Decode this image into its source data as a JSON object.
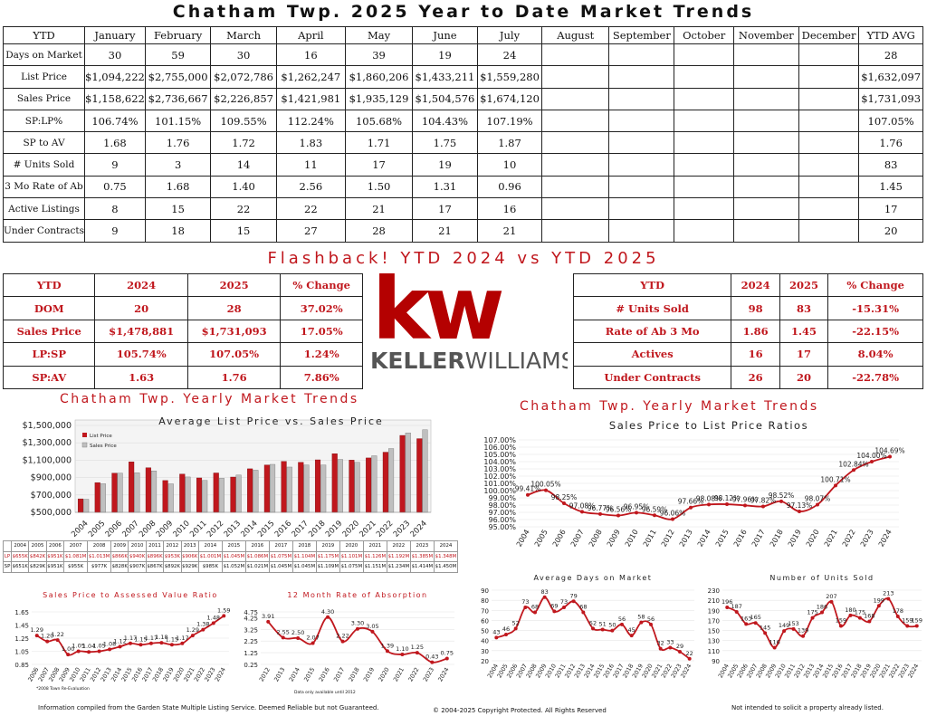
{
  "title": "Chatham Twp. 2025 Year to Date Market Trends",
  "main_table": {
    "headers": [
      "YTD",
      "January",
      "February",
      "March",
      "April",
      "May",
      "June",
      "July",
      "August",
      "September",
      "October",
      "November",
      "December",
      "YTD AVG"
    ],
    "rows": [
      {
        "label": "Days on Market",
        "cells": [
          "30",
          "59",
          "30",
          "16",
          "39",
          "19",
          "24",
          "",
          "",
          "",
          "",
          "",
          "28"
        ]
      },
      {
        "label": "List Price",
        "cells": [
          "$1,094,222",
          "$2,755,000",
          "$2,072,786",
          "$1,262,247",
          "$1,860,206",
          "$1,433,211",
          "$1,559,280",
          "",
          "",
          "",
          "",
          "",
          "$1,632,097"
        ]
      },
      {
        "label": "Sales Price",
        "cells": [
          "$1,158,622",
          "$2,736,667",
          "$2,226,857",
          "$1,421,981",
          "$1,935,129",
          "$1,504,576",
          "$1,674,120",
          "",
          "",
          "",
          "",
          "",
          "$1,731,093"
        ]
      },
      {
        "label": "SP:LP%",
        "cells": [
          "106.74%",
          "101.15%",
          "109.55%",
          "112.24%",
          "105.68%",
          "104.43%",
          "107.19%",
          "",
          "",
          "",
          "",
          "",
          "107.05%"
        ]
      },
      {
        "label": "SP to AV",
        "cells": [
          "1.68",
          "1.76",
          "1.72",
          "1.83",
          "1.71",
          "1.75",
          "1.87",
          "",
          "",
          "",
          "",
          "",
          "1.76"
        ]
      },
      {
        "label": "# Units Sold",
        "cells": [
          "9",
          "3",
          "14",
          "11",
          "17",
          "19",
          "10",
          "",
          "",
          "",
          "",
          "",
          "83"
        ]
      },
      {
        "label": "3 Mo Rate of Ab",
        "cells": [
          "0.75",
          "1.68",
          "1.40",
          "2.56",
          "1.50",
          "1.31",
          "0.96",
          "",
          "",
          "",
          "",
          "",
          "1.45"
        ]
      },
      {
        "label": "Active Listings",
        "cells": [
          "8",
          "15",
          "22",
          "22",
          "21",
          "17",
          "16",
          "",
          "",
          "",
          "",
          "",
          "17"
        ]
      },
      {
        "label": "Under Contracts",
        "cells": [
          "9",
          "18",
          "15",
          "27",
          "28",
          "21",
          "21",
          "",
          "",
          "",
          "",
          "",
          "20"
        ]
      }
    ]
  },
  "flashback_title": "Flashback!  YTD 2024 vs YTD 2025",
  "compare_left": {
    "headers": [
      "YTD",
      "2024",
      "2025",
      "% Change"
    ],
    "rows": [
      [
        "DOM",
        "20",
        "28",
        "37.02%"
      ],
      [
        "Sales Price",
        "$1,478,881",
        "$1,731,093",
        "17.05%"
      ],
      [
        "LP:SP",
        "105.74%",
        "107.05%",
        "1.24%"
      ],
      [
        "SP:AV",
        "1.63",
        "1.76",
        "7.86%"
      ]
    ]
  },
  "compare_right": {
    "headers": [
      "YTD",
      "2024",
      "2025",
      "% Change"
    ],
    "rows": [
      [
        "# Units Sold",
        "98",
        "83",
        "-15.31%"
      ],
      [
        "Rate of Ab 3 Mo",
        "1.86",
        "1.45",
        "-22.15%"
      ],
      [
        "Actives",
        "16",
        "17",
        "8.04%"
      ],
      [
        "Under Contracts",
        "26",
        "20",
        "-22.78%"
      ]
    ]
  },
  "logo": {
    "mark": "kw",
    "wordmark_bold": "KELLER",
    "wordmark_light": "WILLIAMS",
    "reg": "®",
    "color": "#b40101"
  },
  "section_left_title": "Chatham Twp. Yearly Market Trends",
  "section_right_title": "Chatham Twp. Yearly Market Trends",
  "sp_table": {
    "years": [
      "2004",
      "2005",
      "2006",
      "2007",
      "2008",
      "2009",
      "2010",
      "2011",
      "2012",
      "2013",
      "2014",
      "2015",
      "2016",
      "2017",
      "2018",
      "2019",
      "2020",
      "2021",
      "2022",
      "2023",
      "2024"
    ],
    "lp_label": "LP",
    "sp_label": "SP",
    "lp": [
      "$655K",
      "$842K",
      "$951K",
      "$1.081M",
      "$1.013M",
      "$866K",
      "$940K",
      "$896K",
      "$953K",
      "$906K",
      "$1.001M",
      "$1.045M",
      "$1.086M",
      "$1.075M",
      "$1.104M",
      "$1.175M",
      "$1.101M",
      "$1.126M",
      "$1.192M",
      "$1.385M",
      "$1.348M"
    ],
    "sp": [
      "$651K",
      "$829K",
      "$951K",
      "$955K",
      "$977K",
      "$828K",
      "$907K",
      "$867K",
      "$892K",
      "$929K",
      "$985K",
      "$1.052M",
      "$1.021M",
      "$1.045M",
      "$1.045M",
      "$1.109M",
      "$1.075M",
      "$1.151M",
      "$1.234M",
      "$1.414M",
      "$1.450M"
    ]
  },
  "footer": {
    "left": "Information compiled from the Garden State Multiple Listing Service.  Deemed Reliable but not Guaranteed.",
    "center": "© 2004-2025 Copyright Protected.  All Rights Reserved",
    "right": "Not intended to solicit a property already listed.",
    "reval_note": "*2008 Town Re-Evaluation",
    "data_note": "Data only available until 2012"
  },
  "colors": {
    "red": "#c0171d",
    "gray": "#bfbfbf",
    "line": "#c0171d"
  },
  "chart_data": [
    {
      "type": "bar",
      "title": "Average List Price vs. Sales Price",
      "categories": [
        "2004",
        "2005",
        "2006",
        "2007",
        "2008",
        "2009",
        "2010",
        "2011",
        "2012",
        "2013",
        "2014",
        "2015",
        "2016",
        "2017",
        "2018",
        "2019",
        "2020",
        "2021",
        "2022",
        "2023",
        "2024"
      ],
      "series": [
        {
          "name": "List Price",
          "values": [
            655000,
            842000,
            951000,
            1081000,
            1013000,
            866000,
            940000,
            896000,
            953000,
            906000,
            1001000,
            1045000,
            1086000,
            1075000,
            1104000,
            1175000,
            1101000,
            1126000,
            1192000,
            1385000,
            1348000
          ]
        },
        {
          "name": "Sales Price",
          "values": [
            651000,
            829000,
            951000,
            955000,
            977000,
            828000,
            907000,
            867000,
            892000,
            929000,
            985000,
            1052000,
            1021000,
            1045000,
            1045000,
            1109000,
            1075000,
            1151000,
            1234000,
            1414000,
            1450000
          ]
        }
      ],
      "ylim": [
        500000,
        1500000
      ],
      "yticks": [
        "$500,000",
        "$700,000",
        "$900,000",
        "$1,100,000",
        "$1,300,000",
        "$1,500,000"
      ],
      "legend": "top-left"
    },
    {
      "type": "line",
      "title": "Sales Price to List Price Ratios",
      "x": [
        "2004",
        "2005",
        "2006",
        "2007",
        "2008",
        "2009",
        "2010",
        "2011",
        "2012",
        "2013",
        "2014",
        "2015",
        "2016",
        "2017",
        "2018",
        "2019",
        "2020",
        "2021",
        "2022",
        "2023",
        "2024"
      ],
      "values": [
        99.41,
        100.05,
        98.25,
        97.08,
        96.77,
        96.56,
        96.95,
        96.59,
        96.06,
        97.66,
        98.08,
        98.12,
        97.96,
        97.82,
        98.52,
        97.13,
        98.07,
        100.71,
        102.84,
        104.0,
        104.69
      ],
      "labels": [
        "99.41%",
        "100.05%",
        "98.25%",
        "97.08%",
        "96.77%",
        "96.56%",
        "96.95%",
        "96.59%",
        "96.06%",
        "97.66%",
        "98.08%",
        "98.12%",
        "97.96%",
        "97.82%",
        "98.52%",
        "97.13%",
        "98.07%",
        "100.71%",
        "102.84%",
        "104.00%",
        "104.69%"
      ],
      "ylim": [
        95,
        107
      ],
      "yticks": [
        "95.00%",
        "96.00%",
        "97.00%",
        "98.00%",
        "99.00%",
        "100.00%",
        "101.00%",
        "102.00%",
        "103.00%",
        "104.00%",
        "105.00%",
        "106.00%",
        "107.00%"
      ]
    },
    {
      "type": "line",
      "title": "Sales Price to Assessed Value Ratio",
      "x": [
        "2006",
        "2007",
        "2008",
        "2009",
        "2010",
        "2011",
        "2012",
        "2013",
        "2014",
        "2015",
        "2016",
        "2017",
        "2018",
        "2019",
        "2020",
        "2021",
        "2022",
        "2023",
        "2024"
      ],
      "values": [
        1.29,
        1.2,
        1.22,
        1.0,
        1.05,
        1.04,
        1.05,
        1.08,
        1.12,
        1.17,
        1.15,
        1.17,
        1.18,
        1.15,
        1.17,
        1.29,
        1.38,
        1.48,
        1.59
      ],
      "labels": [
        "1.29",
        "1.20",
        "1.22",
        "1.00",
        "1.05",
        "1.04",
        "1.05",
        "1.08",
        "1.12",
        "1.17",
        "1.15",
        "1.17",
        "1.18",
        "1.15",
        "1.17",
        "1.29",
        "1.38",
        "1.48",
        "1.59"
      ],
      "ylim": [
        0.85,
        1.65
      ],
      "yticks": [
        "0.85",
        "1.05",
        "1.25",
        "1.45",
        "1.65"
      ]
    },
    {
      "type": "line",
      "title": "12 Month Rate of Absorption",
      "x": [
        "2012",
        "2013",
        "2014",
        "2015",
        "2016",
        "2017",
        "2018",
        "2019",
        "2020",
        "2021",
        "2022",
        "2023",
        "2024"
      ],
      "values": [
        3.91,
        2.55,
        2.5,
        2.07,
        4.3,
        2.22,
        3.3,
        3.05,
        1.39,
        1.1,
        1.25,
        0.43,
        0.75
      ],
      "labels": [
        "3.91",
        "2.55",
        "2.50",
        "2.07",
        "4.30",
        "2.22",
        "3.30",
        "3.05",
        "1.39",
        "1.10",
        "1.25",
        "0.43",
        "0.75"
      ],
      "ylim": [
        0.25,
        4.75
      ],
      "yticks": [
        "0.25",
        "1.25",
        "2.25",
        "3.25",
        "4.25",
        "4.75"
      ]
    },
    {
      "type": "line",
      "title": "Average Days on Market",
      "x": [
        "2004",
        "2005",
        "2006",
        "2007",
        "2008",
        "2009",
        "2010",
        "2011",
        "2012",
        "2013",
        "2014",
        "2015",
        "2016",
        "2017",
        "2018",
        "2019",
        "2020",
        "2021",
        "2022",
        "2023",
        "2024"
      ],
      "values": [
        43,
        46,
        52,
        73,
        68,
        83,
        69,
        73,
        79,
        68,
        52,
        51,
        50,
        56,
        45,
        58,
        56,
        32,
        33,
        29,
        22
      ],
      "labels": [
        "43",
        "46",
        "52",
        "73",
        "68",
        "83",
        "69",
        "73",
        "79",
        "68",
        "52",
        "51",
        "50",
        "56",
        "45",
        "58",
        "56",
        "32",
        "33",
        "29",
        "22"
      ],
      "ylim": [
        20,
        90
      ],
      "yticks": [
        "20",
        "30",
        "40",
        "50",
        "60",
        "70",
        "80",
        "90"
      ]
    },
    {
      "type": "line",
      "title": "Number of Units Sold",
      "x": [
        "2004",
        "2005",
        "2006",
        "2007",
        "2008",
        "2009",
        "2010",
        "2011",
        "2012",
        "2013",
        "2014",
        "2015",
        "2016",
        "2017",
        "2018",
        "2019",
        "2020",
        "2021",
        "2022",
        "2023",
        "2024"
      ],
      "values": [
        196,
        187,
        163,
        165,
        145,
        116,
        149,
        153,
        139,
        175,
        186,
        207,
        159,
        180,
        175,
        168,
        199,
        213,
        178,
        159,
        159
      ],
      "labels": [
        "196",
        "187",
        "163",
        "165",
        "145",
        "116",
        "149",
        "153",
        "139",
        "175",
        "186",
        "207",
        "159",
        "180",
        "175",
        "168",
        "199",
        "213",
        "178",
        "159",
        "159"
      ],
      "ylim": [
        90,
        230
      ],
      "yticks": [
        "90",
        "110",
        "130",
        "150",
        "170",
        "190",
        "210",
        "230"
      ]
    }
  ]
}
